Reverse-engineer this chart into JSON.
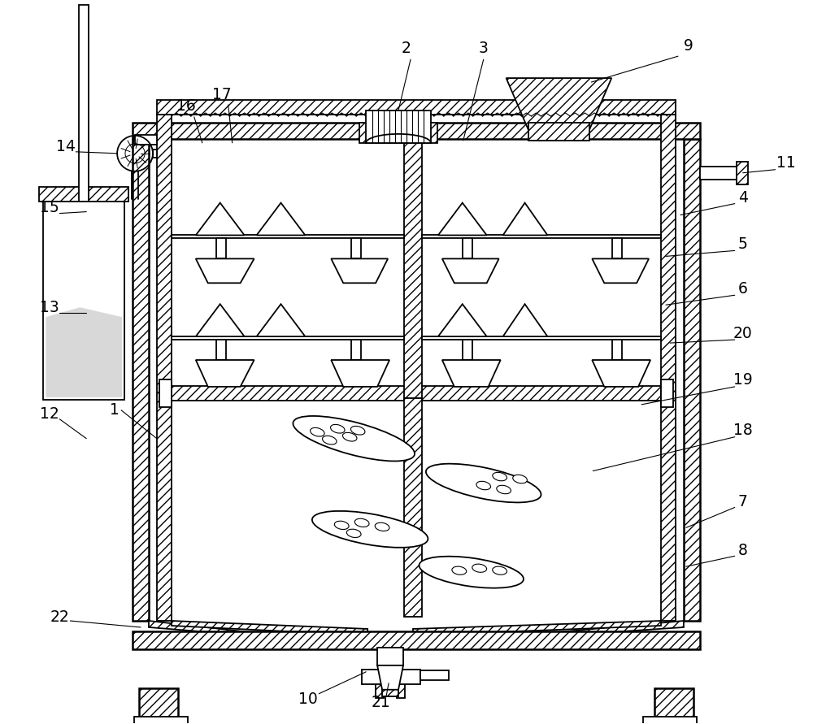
{
  "bg_color": "#ffffff",
  "line_color": "#000000",
  "fig_width": 10.0,
  "fig_height": 8.91,
  "dpi": 100
}
